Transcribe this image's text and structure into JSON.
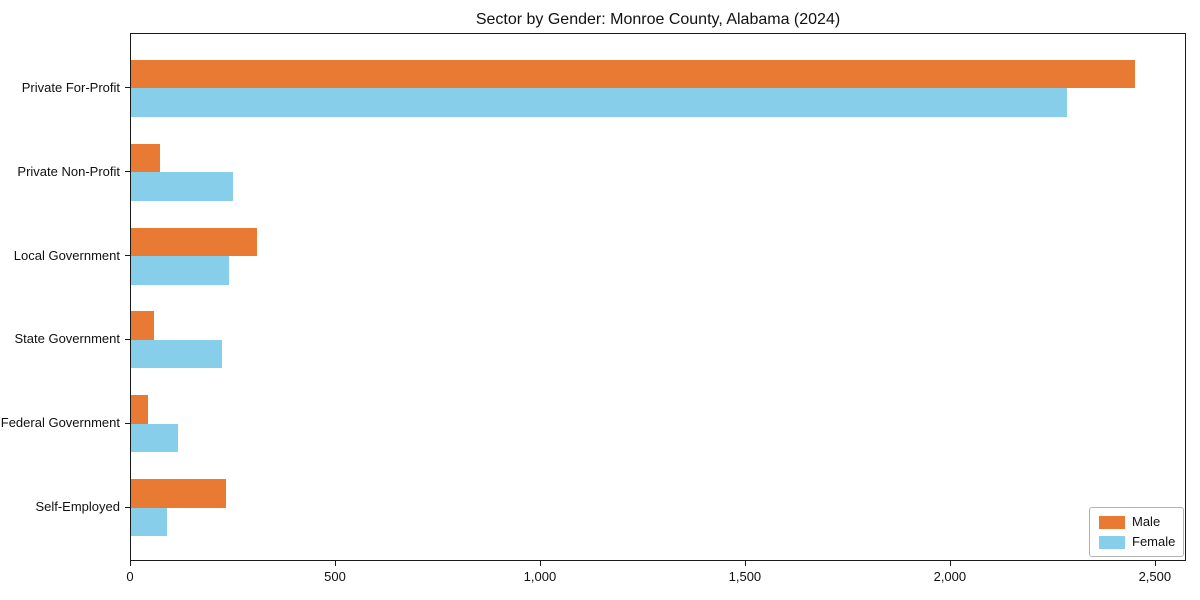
{
  "chart_data": {
    "type": "bar",
    "orientation": "horizontal",
    "title": "Sector by Gender: Monroe County, Alabama (2024)",
    "categories": [
      "Private For-Profit",
      "Private Non-Profit",
      "Local Government",
      "State Government",
      "Federal Government",
      "Self-Employed"
    ],
    "series": [
      {
        "name": "Male",
        "color": "#e87a33",
        "values": [
          2450,
          70,
          307,
          57,
          41,
          232
        ]
      },
      {
        "name": "Female",
        "color": "#87ceeb",
        "values": [
          2283,
          248,
          240,
          222,
          115,
          88
        ]
      }
    ],
    "xlabel": "",
    "ylabel": "",
    "xlim": [
      0,
      2576
    ],
    "xticks": [
      0,
      500,
      1000,
      1500,
      2000,
      2500
    ],
    "xtick_labels": [
      "0",
      "500",
      "1,000",
      "1,500",
      "2,000",
      "2,500"
    ],
    "grid": false,
    "legend_position": "lower right",
    "frame_color": "#1a1a1a"
  }
}
